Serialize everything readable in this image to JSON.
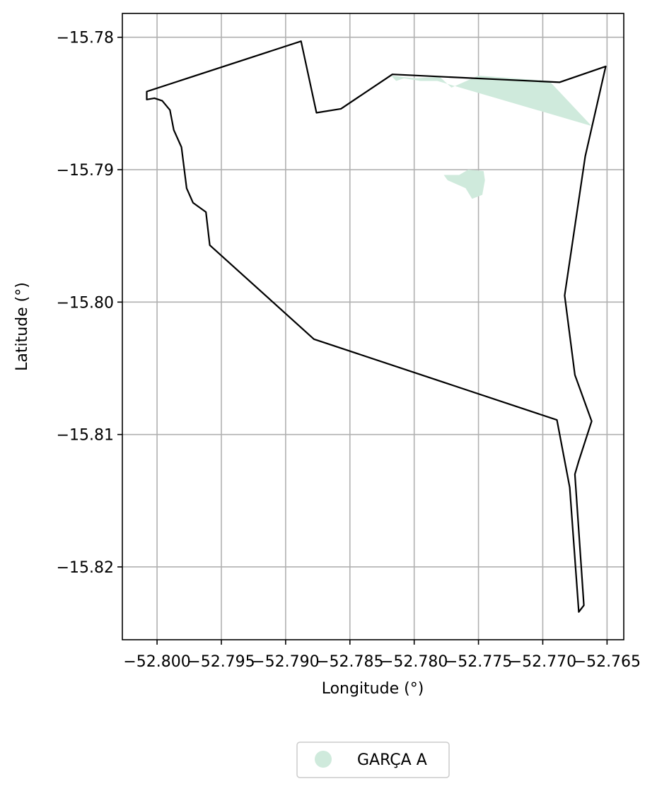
{
  "chart_data": {
    "type": "map",
    "xlabel": "Longitude (°)",
    "ylabel": "Latitude (°)",
    "xlim": [
      -52.8027,
      -52.7637
    ],
    "ylim": [
      -15.8255,
      -15.7782
    ],
    "grid": true,
    "x_ticks": [
      -52.8,
      -52.795,
      -52.79,
      -52.785,
      -52.78,
      -52.775,
      -52.77,
      -52.765
    ],
    "x_tick_labels": [
      "−52.800",
      "−52.795",
      "−52.790",
      "−52.785",
      "−52.780",
      "−52.775",
      "−52.770",
      "−52.765"
    ],
    "y_ticks": [
      -15.78,
      -15.79,
      -15.8,
      -15.81,
      -15.82
    ],
    "y_tick_labels": [
      "−15.78",
      "−15.79",
      "−15.80",
      "−15.81",
      "−15.82"
    ],
    "boundary": {
      "color": "#000000",
      "coords": [
        [
          -52.8008,
          -15.7841
        ],
        [
          -52.7888,
          -15.7803
        ],
        [
          -52.7876,
          -15.7857
        ],
        [
          -52.7857,
          -15.7854
        ],
        [
          -52.7817,
          -15.7828
        ],
        [
          -52.7687,
          -15.7834
        ],
        [
          -52.7651,
          -15.7822
        ],
        [
          -52.7667,
          -15.789
        ],
        [
          -52.7683,
          -15.7995
        ],
        [
          -52.7675,
          -15.8055
        ],
        [
          -52.7662,
          -15.809
        ],
        [
          -52.7672,
          -15.812
        ],
        [
          -52.7675,
          -15.813
        ],
        [
          -52.7668,
          -15.8229
        ],
        [
          -52.7672,
          -15.8234
        ],
        [
          -52.7679,
          -15.814
        ],
        [
          -52.7689,
          -15.8089
        ],
        [
          -52.7878,
          -15.8028
        ],
        [
          -52.7959,
          -15.7957
        ],
        [
          -52.7962,
          -15.7932
        ],
        [
          -52.7972,
          -15.7925
        ],
        [
          -52.7977,
          -15.7914
        ],
        [
          -52.7981,
          -15.7883
        ],
        [
          -52.7987,
          -15.787
        ],
        [
          -52.799,
          -15.7855
        ],
        [
          -52.7996,
          -15.7848
        ],
        [
          -52.8002,
          -15.7846
        ],
        [
          -52.8008,
          -15.7847
        ]
      ]
    },
    "series": [
      {
        "name": "GARÇA A",
        "color": "#cfeadc",
        "polygons": [
          [
            [
              -52.7818,
              -15.7829
            ],
            [
              -52.78,
              -15.7831
            ],
            [
              -52.778,
              -15.783
            ],
            [
              -52.7771,
              -15.7838
            ],
            [
              -52.775,
              -15.7829
            ],
            [
              -52.7695,
              -15.7833
            ],
            [
              -52.7662,
              -15.7867
            ],
            [
              -52.7782,
              -15.7833
            ],
            [
              -52.7795,
              -15.7833
            ],
            [
              -52.7808,
              -15.7831
            ],
            [
              -52.7814,
              -15.7833
            ]
          ],
          [
            [
              -52.7777,
              -15.7904
            ],
            [
              -52.7765,
              -15.7904
            ],
            [
              -52.7758,
              -15.79
            ],
            [
              -52.7746,
              -15.7901
            ],
            [
              -52.7745,
              -15.7908
            ],
            [
              -52.7747,
              -15.7919
            ],
            [
              -52.7755,
              -15.7922
            ],
            [
              -52.776,
              -15.7914
            ],
            [
              -52.7767,
              -15.7911
            ],
            [
              -52.7774,
              -15.7908
            ]
          ]
        ]
      }
    ],
    "legend": {
      "placement": "bottom-center",
      "entries": [
        "GARÇA A"
      ]
    }
  }
}
